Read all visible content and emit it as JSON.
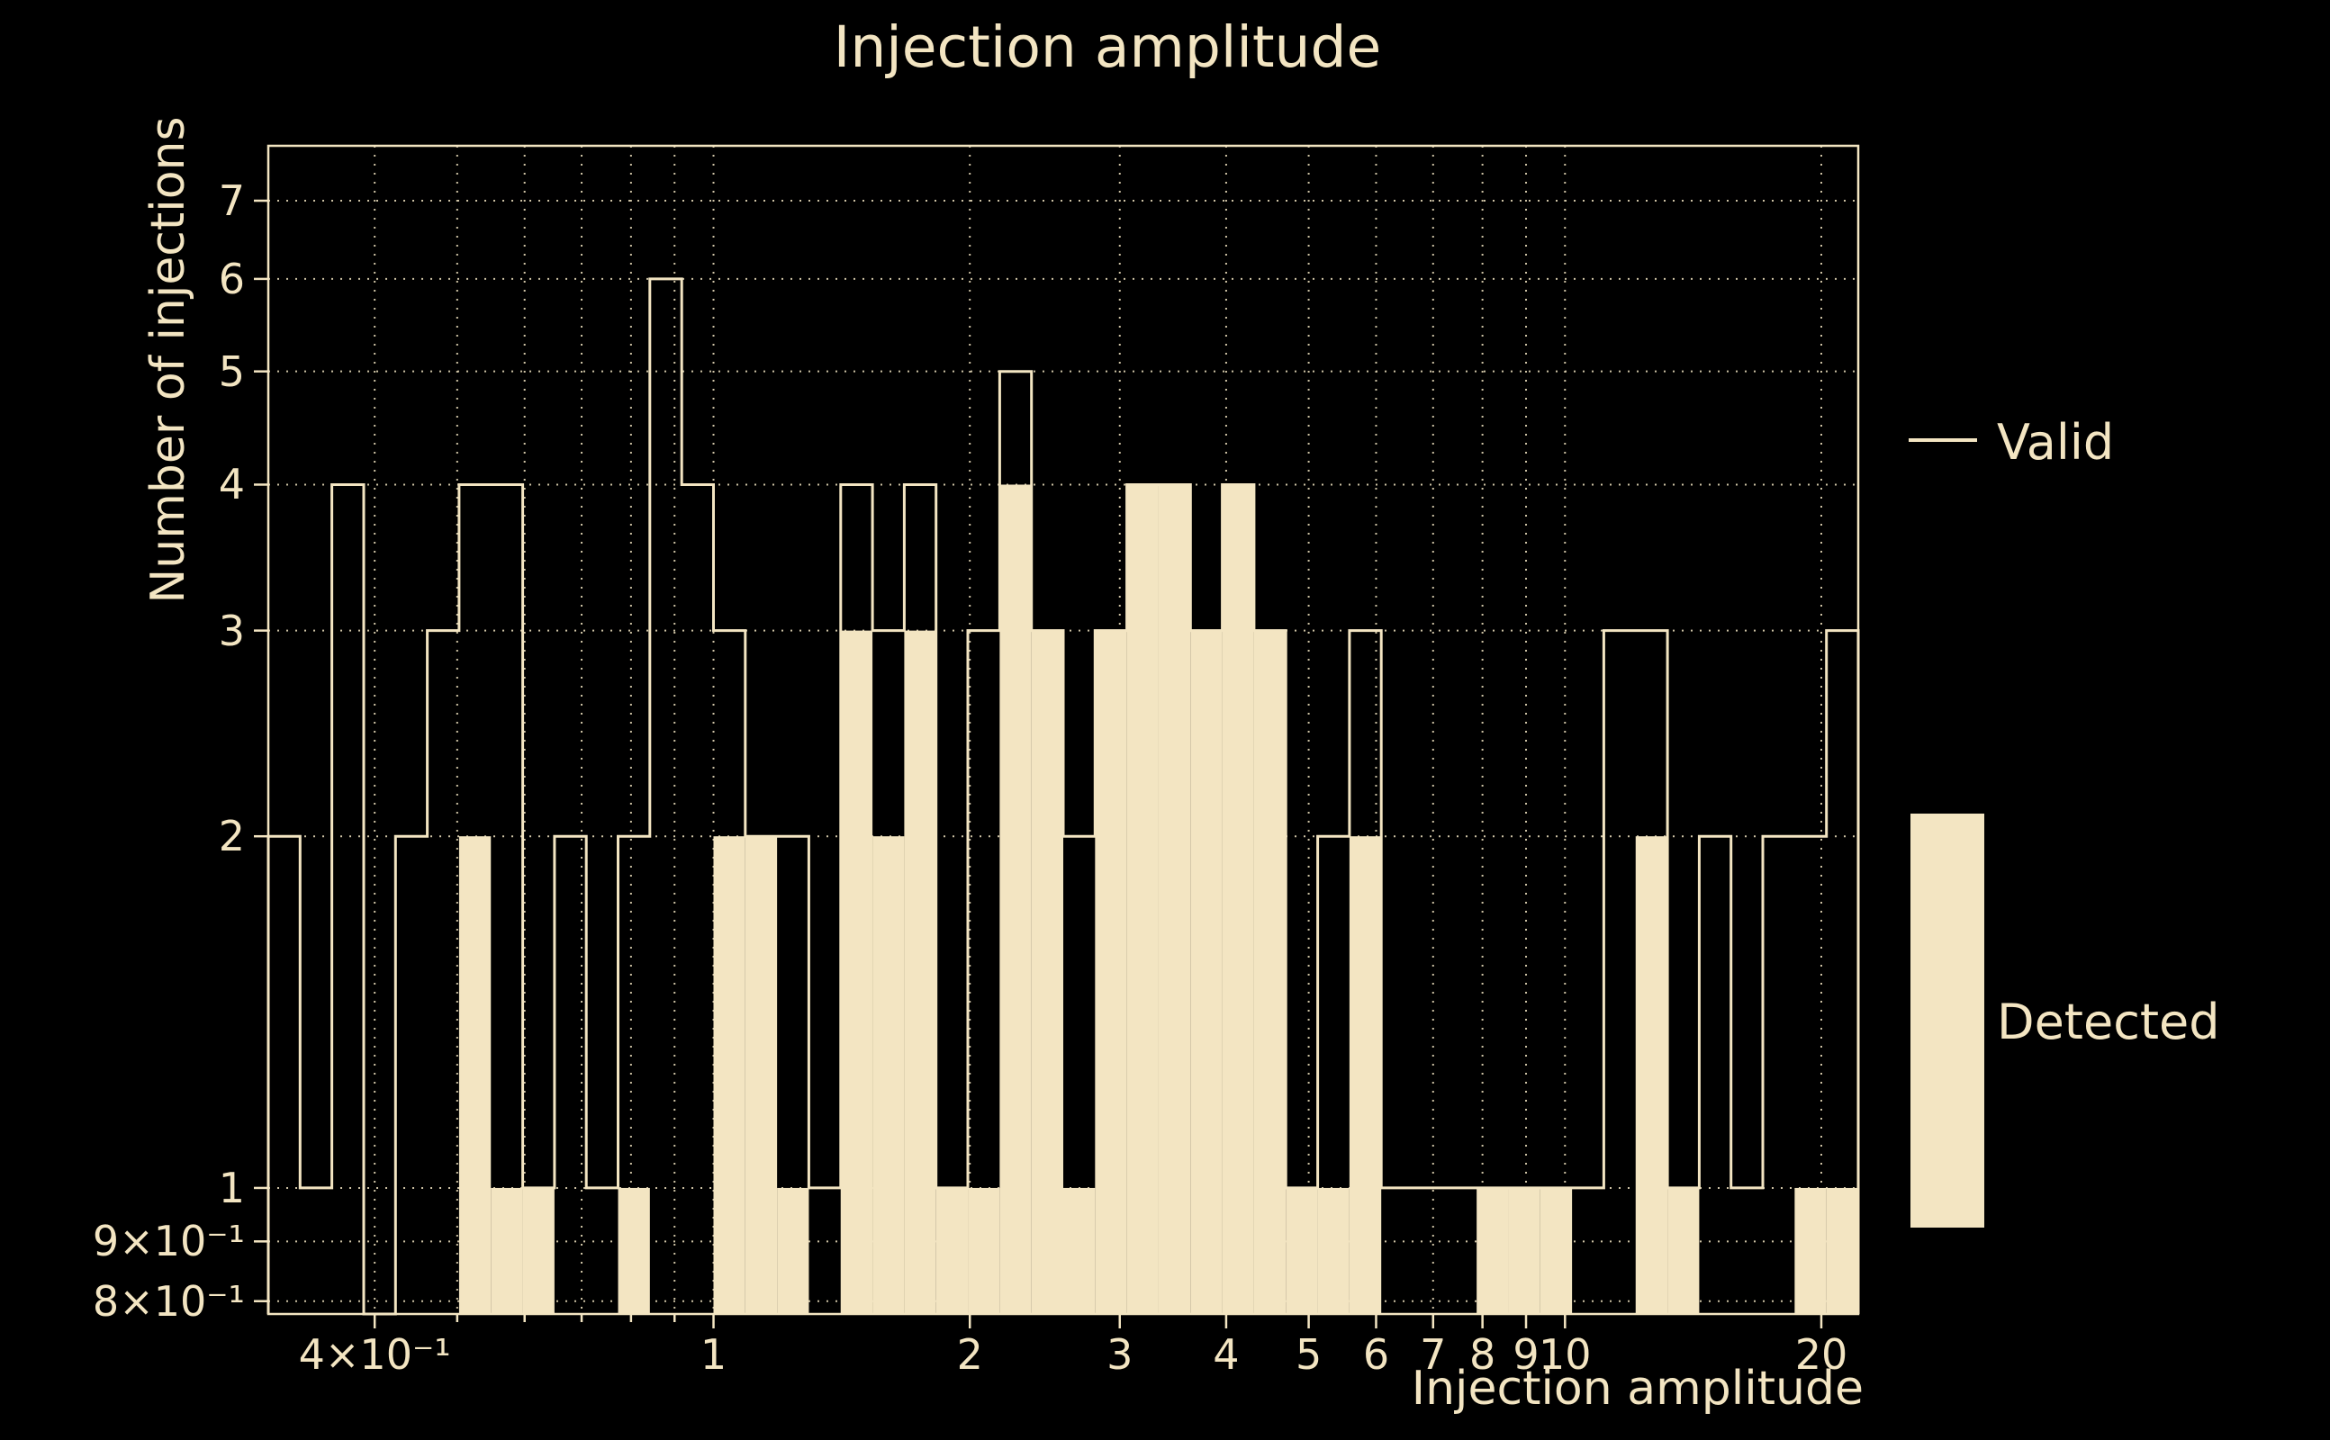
{
  "title": "Injection amplitude",
  "x_axis_label": "Injection amplitude",
  "y_axis_label": "Number of injections",
  "legend": {
    "valid_label": "Valid",
    "detected_label": "Detected"
  },
  "colors": {
    "background": "#000000",
    "foreground": "#f3e5c2"
  },
  "chart_data": {
    "type": "bar",
    "subtype": "histogram",
    "title": "Injection amplitude",
    "xlabel": "Injection amplitude",
    "ylabel": "Number of injections",
    "x_scale": "log",
    "y_scale": "log",
    "x_range": [
      0.3,
      22.1
    ],
    "y_range": [
      0.78,
      7.8
    ],
    "n_bins": 50,
    "bin_edges_log_uniform": true,
    "grid": {
      "style": "dotted",
      "x": [
        0.4,
        0.5,
        0.6,
        0.7,
        0.8,
        0.9,
        1,
        2,
        3,
        4,
        5,
        6,
        7,
        8,
        9,
        10,
        20
      ],
      "y": [
        0.8,
        0.9,
        1,
        2,
        3,
        4,
        5,
        6,
        7
      ]
    },
    "x_ticks": [
      {
        "value": 0.4,
        "label": "4×10⁻¹"
      },
      {
        "value": 1,
        "label": "1"
      },
      {
        "value": 2,
        "label": "2"
      },
      {
        "value": 3,
        "label": "3"
      },
      {
        "value": 4,
        "label": "4"
      },
      {
        "value": 5,
        "label": "5"
      },
      {
        "value": 6,
        "label": "6"
      },
      {
        "value": 7,
        "label": "7"
      },
      {
        "value": 8,
        "label": "8"
      },
      {
        "value": 9,
        "label": "9"
      },
      {
        "value": 10,
        "label": "10"
      },
      {
        "value": 20,
        "label": "20"
      }
    ],
    "x_minor_ticks": [
      0.5,
      0.6,
      0.7,
      0.8,
      0.9
    ],
    "y_ticks": [
      {
        "value": 0.8,
        "label": "8×10⁻¹"
      },
      {
        "value": 0.9,
        "label": "9×10⁻¹"
      },
      {
        "value": 1,
        "label": "1"
      },
      {
        "value": 2,
        "label": "2"
      },
      {
        "value": 3,
        "label": "3"
      },
      {
        "value": 4,
        "label": "4"
      },
      {
        "value": 5,
        "label": "5"
      },
      {
        "value": 6,
        "label": "6"
      },
      {
        "value": 7,
        "label": "7"
      }
    ],
    "legend_position": "outside-right",
    "series": [
      {
        "name": "Valid",
        "style": "step-outline",
        "values": [
          2,
          1,
          4,
          0,
          2,
          3,
          4,
          4,
          1,
          2,
          1,
          2,
          6,
          4,
          3,
          2,
          2,
          1,
          4,
          3,
          4,
          1,
          3,
          5,
          3,
          2,
          3,
          4,
          4,
          3,
          4,
          3,
          1,
          2,
          3,
          1,
          1,
          1,
          1,
          1,
          1,
          1,
          3,
          3,
          1,
          2,
          1,
          2,
          2,
          3
        ]
      },
      {
        "name": "Detected",
        "style": "filled",
        "values": [
          0,
          0,
          0,
          0,
          0,
          0,
          2,
          1,
          1,
          0,
          0,
          1,
          0,
          0,
          2,
          2,
          1,
          0,
          3,
          2,
          3,
          1,
          1,
          4,
          3,
          1,
          3,
          4,
          4,
          3,
          4,
          3,
          1,
          1,
          2,
          0,
          0,
          0,
          1,
          1,
          1,
          0,
          0,
          2,
          1,
          0,
          0,
          0,
          1,
          1
        ]
      }
    ]
  }
}
